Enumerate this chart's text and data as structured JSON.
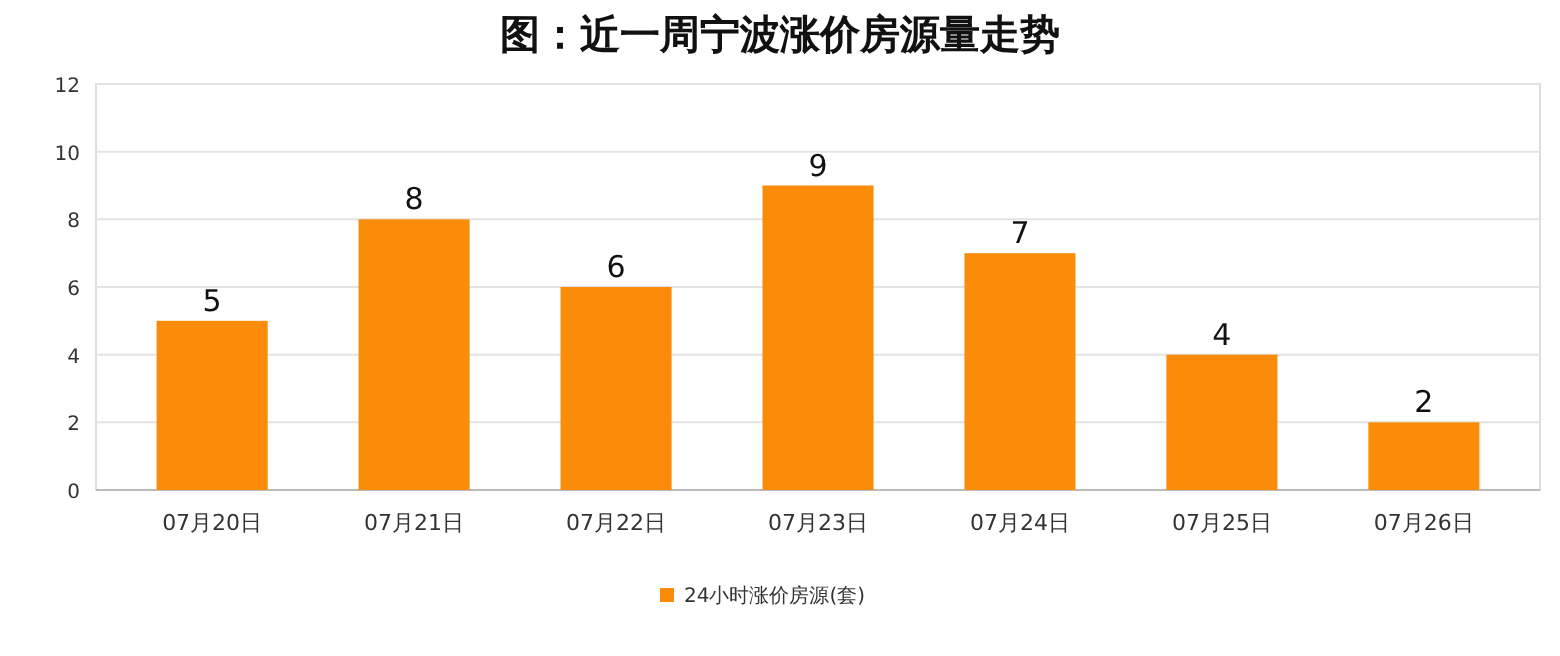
{
  "chart_data": {
    "type": "bar",
    "title": "图：近一周宁波涨价房源量走势",
    "categories": [
      "07月20日",
      "07月21日",
      "07月22日",
      "07月23日",
      "07月24日",
      "07月25日",
      "07月26日"
    ],
    "series": [
      {
        "name": "24小时涨价房源(套)",
        "color": "#fb8c0a",
        "values": [
          5,
          8,
          6,
          9,
          7,
          4,
          2
        ]
      }
    ],
    "ylim": [
      0,
      12
    ],
    "yticks": [
      0,
      2,
      4,
      6,
      8,
      10,
      12
    ],
    "grid": "y",
    "legend": "bottom",
    "data_labels": true
  }
}
